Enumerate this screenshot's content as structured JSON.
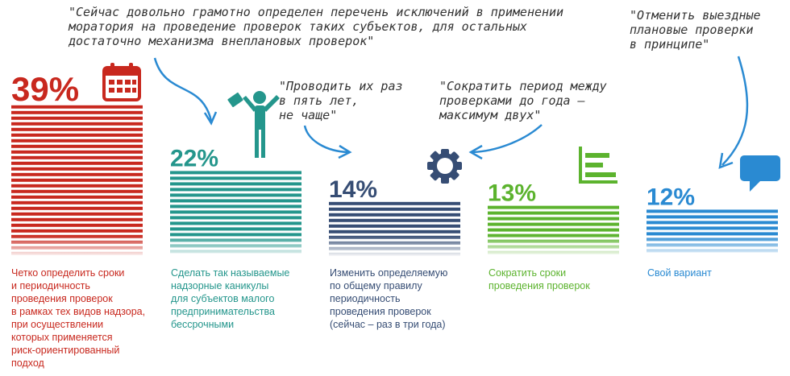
{
  "chart_data": {
    "type": "bar",
    "unit": "%",
    "categories": [
      "Четко определить сроки\nи периодичность\nпроведения проверок\nв рамках тех видов надзора,\nпри осуществлении\nкоторых применяется\nриск-ориентированный\nподход",
      "Сделать так называемые\nнадзорные каникулы\nдля субъектов малого\nпредпринимательства\nбессрочными",
      "Изменить определяемую\nпо общему правилу\nпериодичность\nпроведения проверок\n(сейчас – раз в три года)",
      "Сократить сроки\nпроведения проверок",
      "Свой вариант"
    ],
    "values": [
      39,
      22,
      14,
      13,
      12
    ],
    "value_labels": [
      "39%",
      "22%",
      "14%",
      "13%",
      "12%"
    ],
    "colors": [
      "#c8281e",
      "#24968c",
      "#364d74",
      "#5cb32e",
      "#2a8ad2"
    ],
    "icons": [
      "calendar-icon",
      "businessman-icon",
      "gear-icon",
      "bar-chart-icon",
      "speech-bubble-icon"
    ]
  },
  "quotes": [
    "\"Сейчас довольно грамотно определен перечень исключений в применении\nморатория на проведение проверок таких субъектов, для остальных\nдостаточно механизма внеплановых проверок\"",
    "\"Проводить их раз\nв пять лет,\nне чаще\"",
    "\"Сократить период между\nпроверками до года –\nмаксимум двух\"",
    "\"Отменить выездные\nплановые проверки\nв принципе\""
  ]
}
